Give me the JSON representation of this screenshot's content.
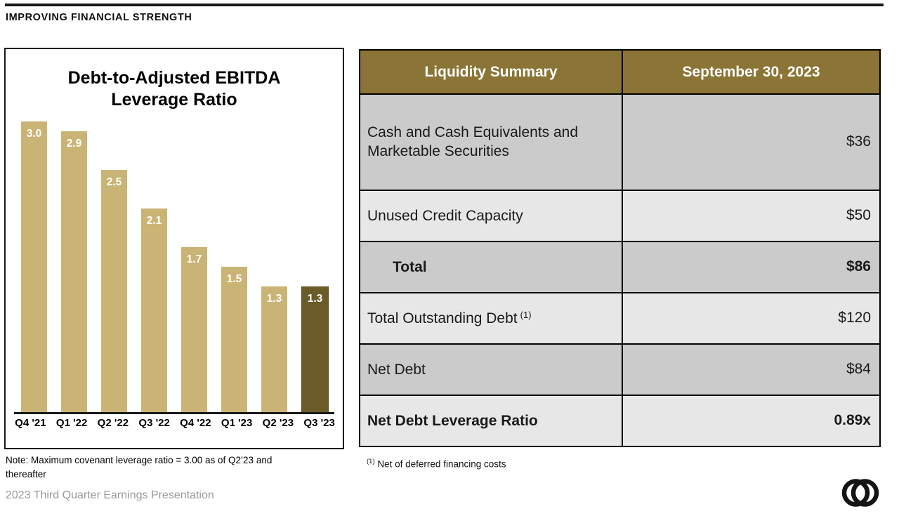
{
  "page": {
    "kicker": "IMPROVING FINANCIAL STRENGTH",
    "footer": "2023 Third Quarter Earnings Presentation",
    "logo": "interlocking-rings-logo"
  },
  "colors": {
    "bar": "#C9B476",
    "bar_highlight": "#6A5B28",
    "table_header_bg": "#8B7536",
    "row_gray": "#CBCBCB",
    "row_light": "#E7E7E7",
    "footer_text": "#989898"
  },
  "chart_data": [
    {
      "type": "bar",
      "title": "Debt-to-Adjusted EBITDA Leverage Ratio",
      "title_lines": [
        "Debt-to-Adjusted EBITDA",
        "Leverage Ratio"
      ],
      "categories": [
        "Q4 '21",
        "Q1 '22",
        "Q2 '22",
        "Q3 '22",
        "Q4 '22",
        "Q1 '23",
        "Q2 '23",
        "Q3 '23"
      ],
      "values": [
        3.0,
        2.9,
        2.5,
        2.1,
        1.7,
        1.5,
        1.3,
        1.3
      ],
      "data_labels": [
        "3.0",
        "2.9",
        "2.5",
        "2.1",
        "1.7",
        "1.5",
        "1.3",
        "1.3"
      ],
      "highlight_index": 7,
      "xlabel": "",
      "ylabel": "",
      "ylim": [
        0,
        3.0
      ],
      "grid": false,
      "legend": false,
      "note": "Note: Maximum covenant leverage ratio = 3.00 as of Q2’23 and thereafter"
    },
    {
      "type": "table",
      "headers": [
        "Liquidity Summary",
        "September 30, 2023"
      ],
      "rows": [
        {
          "label": "Cash and Cash Equivalents and Marketable Securities",
          "sup": "",
          "value": "$36",
          "emphasis": false,
          "indent": false
        },
        {
          "label": "Unused Credit Capacity",
          "sup": "",
          "value": "$50",
          "emphasis": false,
          "indent": false
        },
        {
          "label": "Total",
          "sup": "",
          "value": "$86",
          "emphasis": true,
          "indent": true
        },
        {
          "label": "Total Outstanding Debt",
          "sup": "(1)",
          "value": "$120",
          "emphasis": false,
          "indent": false
        },
        {
          "label": "Net Debt",
          "sup": "",
          "value": "$84",
          "emphasis": false,
          "indent": false
        },
        {
          "label": "Net Debt Leverage Ratio",
          "sup": "",
          "value": "0.89x",
          "emphasis": true,
          "indent": false
        }
      ],
      "footnote_sup": "(1)",
      "footnote_text": "Net of deferred financing costs"
    }
  ]
}
